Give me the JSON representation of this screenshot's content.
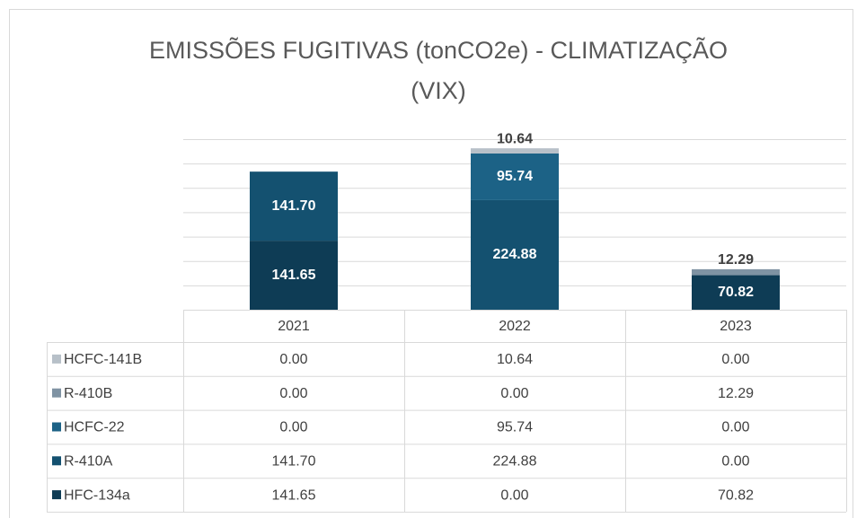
{
  "chart_data": {
    "type": "stacked_bar",
    "title": "EMISSÕES FUGITIVAS (tonCO2e) - CLIMATIZAÇÃO (VIX)",
    "categories": [
      "2021",
      "2022",
      "2023"
    ],
    "series": [
      {
        "name": "HCFC-141B",
        "color": "#b7c0c8",
        "values": [
          0,
          10.64,
          0
        ],
        "value_labels": [
          "0.00",
          "10.64",
          "0.00"
        ]
      },
      {
        "name": "R-410B",
        "color": "#7f93a3",
        "values": [
          0,
          0,
          12.29
        ],
        "value_labels": [
          "0.00",
          "0.00",
          "12.29"
        ]
      },
      {
        "name": "HCFC-22",
        "color": "#1c6286",
        "values": [
          0,
          95.74,
          0
        ],
        "value_labels": [
          "0.00",
          "95.74",
          "0.00"
        ]
      },
      {
        "name": "R-410A",
        "color": "#145170",
        "values": [
          141.7,
          224.88,
          0
        ],
        "value_labels": [
          "141.70",
          "224.88",
          "0.00"
        ]
      },
      {
        "name": "HFC-134a",
        "color": "#0e3c55",
        "values": [
          141.65,
          0,
          70.82
        ],
        "value_labels": [
          "141.65",
          "0.00",
          "70.82"
        ]
      }
    ],
    "ylim": [
      0,
      350
    ],
    "yticks": [
      0,
      50,
      100,
      150,
      200,
      250,
      300,
      350
    ],
    "grid": true
  }
}
